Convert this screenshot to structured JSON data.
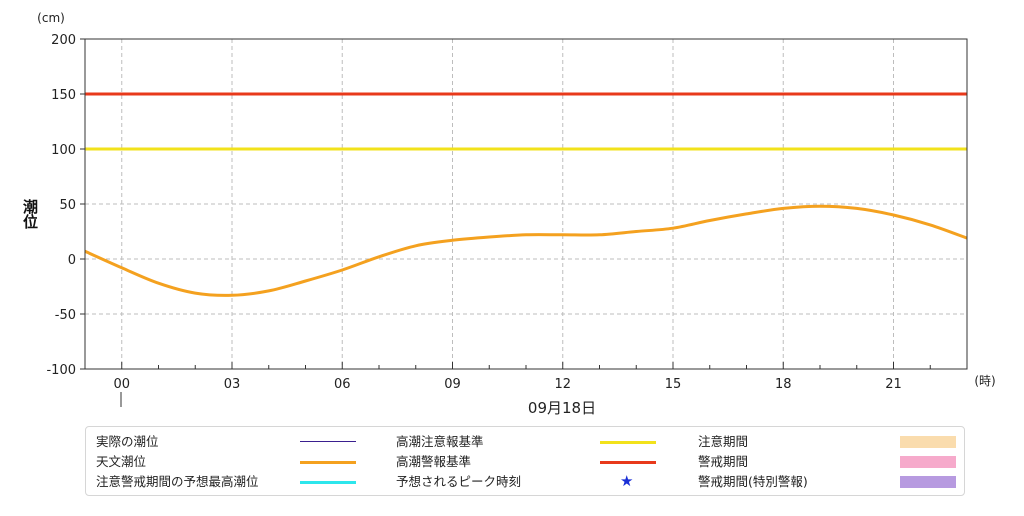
{
  "chart_data": {
    "type": "line",
    "y_unit": "(cm)",
    "x_unit": "(時)",
    "ylabel": "潮位",
    "date_label": "09月18日",
    "ylim": [
      -100,
      200
    ],
    "xlim": [
      -1,
      23
    ],
    "yticks": [
      200,
      150,
      100,
      50,
      0,
      -50,
      -100
    ],
    "ytick_labels": [
      "200",
      "150",
      "100",
      "50",
      "0",
      "-50",
      "-100"
    ],
    "xticks": [
      0,
      3,
      6,
      9,
      12,
      15,
      18,
      21
    ],
    "xtick_labels": [
      "00",
      "03",
      "06",
      "09",
      "12",
      "15",
      "18",
      "21"
    ],
    "grid": true,
    "series": [
      {
        "name": "天文潮位",
        "color": "#f4a11f",
        "x": [
          -1,
          0,
          1,
          2,
          3,
          4,
          5,
          6,
          7,
          8,
          9,
          10,
          11,
          12,
          13,
          14,
          15,
          16,
          17,
          18,
          19,
          20,
          21,
          22,
          23
        ],
        "values": [
          7,
          -8,
          -22,
          -31,
          -33,
          -29,
          -20,
          -10,
          2,
          12,
          17,
          20,
          22,
          22,
          22,
          25,
          28,
          35,
          41,
          46,
          48,
          46,
          40,
          31,
          19
        ]
      },
      {
        "name": "高潮注意報基準",
        "color": "#f2e21b",
        "x": [
          -1,
          23
        ],
        "values": [
          100,
          100
        ]
      },
      {
        "name": "高潮警報基準",
        "color": "#e8391b",
        "x": [
          -1,
          23
        ],
        "values": [
          150,
          150
        ]
      }
    ]
  },
  "legend": {
    "col1": [
      {
        "label": "実際の潮位",
        "color": "#3a1f8f",
        "kind": "thin-line"
      },
      {
        "label": "天文潮位",
        "color": "#f4a11f",
        "kind": "line"
      },
      {
        "label": "注意警戒期間の予想最高潮位",
        "color": "#2de6ec",
        "kind": "line"
      }
    ],
    "col2": [
      {
        "label": "高潮注意報基準",
        "color": "#f2e21b",
        "kind": "line"
      },
      {
        "label": "高潮警報基準",
        "color": "#e8391b",
        "kind": "line"
      },
      {
        "label": "予想されるピーク時刻",
        "color": "#1a2fd6",
        "kind": "star",
        "icon": "★"
      }
    ],
    "col3": [
      {
        "label": "注意期間",
        "color": "#fadcad",
        "kind": "box"
      },
      {
        "label": "警戒期間",
        "color": "#f6aacb",
        "kind": "box"
      },
      {
        "label": "警戒期間(特別警報)",
        "color": "#b79ae0",
        "kind": "box"
      }
    ]
  }
}
